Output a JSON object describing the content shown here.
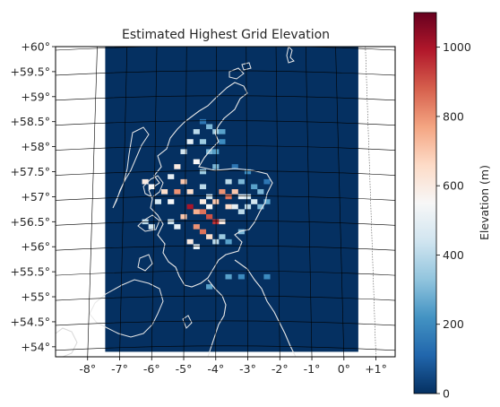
{
  "chart_data": {
    "type": "heatmap",
    "title": "Estimated Highest Grid Elevation",
    "xlabel": "",
    "ylabel": "",
    "xlim": [
      -9.0,
      1.6
    ],
    "ylim": [
      53.8,
      60.0
    ],
    "x_ticks": [
      {
        "value": -8,
        "label": "-8°"
      },
      {
        "value": -7,
        "label": "-7°"
      },
      {
        "value": -6,
        "label": "-6°"
      },
      {
        "value": -5,
        "label": "-5°"
      },
      {
        "value": -4,
        "label": "-4°"
      },
      {
        "value": -3,
        "label": "-3°"
      },
      {
        "value": -2,
        "label": "-2°"
      },
      {
        "value": -1,
        "label": "-1°"
      },
      {
        "value": 0,
        "label": "0°"
      },
      {
        "value": 1,
        "label": "+1°"
      }
    ],
    "y_ticks": [
      {
        "value": 60.0,
        "label": "+60°"
      },
      {
        "value": 59.5,
        "label": "+59.5°"
      },
      {
        "value": 59.0,
        "label": "+59°"
      },
      {
        "value": 58.5,
        "label": "+58.5°"
      },
      {
        "value": 58.0,
        "label": "+58°"
      },
      {
        "value": 57.5,
        "label": "+57.5°"
      },
      {
        "value": 57.0,
        "label": "+57°"
      },
      {
        "value": 56.5,
        "label": "+56.5°"
      },
      {
        "value": 56.0,
        "label": "+56°"
      },
      {
        "value": 55.5,
        "label": "+55.5°"
      },
      {
        "value": 55.0,
        "label": "+55°"
      },
      {
        "value": 54.5,
        "label": "+54.5°"
      },
      {
        "value": 54.0,
        "label": "+54°"
      }
    ],
    "colorbar": {
      "label": "Elevation (m)",
      "min": 0,
      "max": 1100,
      "ticks": [
        {
          "value": 0,
          "label": "0"
        },
        {
          "value": 200,
          "label": "200"
        },
        {
          "value": 400,
          "label": "400"
        },
        {
          "value": 600,
          "label": "600"
        },
        {
          "value": 800,
          "label": "800"
        },
        {
          "value": 1000,
          "label": "1000"
        }
      ],
      "colormap": "RdBu_r",
      "colors": [
        "#053061",
        "#2166ac",
        "#4393c3",
        "#92c5de",
        "#d1e5f0",
        "#f7f7f7",
        "#fddbc7",
        "#f4a582",
        "#d6604d",
        "#b2182b",
        "#67001f"
      ]
    },
    "data_extent": {
      "lon_min": -7.45,
      "lon_max": 0.45,
      "lat_min": 53.9,
      "lat_max": 60.0
    },
    "grid_cell_deg": {
      "lon": 0.2,
      "lat": 0.1
    },
    "cells": [
      {
        "lon": -4.4,
        "lat": 58.5,
        "elev": 150
      },
      {
        "lon": -4.2,
        "lat": 58.4,
        "elev": 300
      },
      {
        "lon": -4.0,
        "lat": 58.3,
        "elev": 350
      },
      {
        "lon": -3.8,
        "lat": 58.3,
        "elev": 250
      },
      {
        "lon": -4.6,
        "lat": 58.3,
        "elev": 400
      },
      {
        "lon": -4.8,
        "lat": 58.1,
        "elev": 500
      },
      {
        "lon": -5.0,
        "lat": 57.9,
        "elev": 450
      },
      {
        "lon": -4.4,
        "lat": 58.1,
        "elev": 350
      },
      {
        "lon": -4.2,
        "lat": 57.9,
        "elev": 300
      },
      {
        "lon": -3.8,
        "lat": 58.1,
        "elev": 200
      },
      {
        "lon": -4.0,
        "lat": 57.9,
        "elev": 250
      },
      {
        "lon": -4.6,
        "lat": 57.7,
        "elev": 550
      },
      {
        "lon": -5.2,
        "lat": 57.6,
        "elev": 600
      },
      {
        "lon": -5.4,
        "lat": 57.4,
        "elev": 500
      },
      {
        "lon": -5.0,
        "lat": 57.3,
        "elev": 700
      },
      {
        "lon": -4.8,
        "lat": 57.1,
        "elev": 650
      },
      {
        "lon": -5.2,
        "lat": 57.1,
        "elev": 800
      },
      {
        "lon": -5.4,
        "lat": 56.9,
        "elev": 550
      },
      {
        "lon": -4.4,
        "lat": 57.2,
        "elev": 400
      },
      {
        "lon": -4.2,
        "lat": 57.0,
        "elev": 450
      },
      {
        "lon": -3.8,
        "lat": 57.1,
        "elev": 800
      },
      {
        "lon": -3.6,
        "lat": 57.0,
        "elev": 850
      },
      {
        "lon": -3.4,
        "lat": 57.1,
        "elev": 700
      },
      {
        "lon": -3.2,
        "lat": 57.0,
        "elev": 500
      },
      {
        "lon": -3.0,
        "lat": 57.0,
        "elev": 450
      },
      {
        "lon": -3.6,
        "lat": 57.3,
        "elev": 400
      },
      {
        "lon": -3.2,
        "lat": 57.3,
        "elev": 300
      },
      {
        "lon": -2.8,
        "lat": 57.2,
        "elev": 250
      },
      {
        "lon": -2.6,
        "lat": 57.1,
        "elev": 300
      },
      {
        "lon": -2.4,
        "lat": 57.3,
        "elev": 150
      },
      {
        "lon": -3.0,
        "lat": 56.8,
        "elev": 400
      },
      {
        "lon": -2.8,
        "lat": 56.9,
        "elev": 450
      },
      {
        "lon": -4.8,
        "lat": 56.8,
        "elev": 1000
      },
      {
        "lon": -4.6,
        "lat": 56.7,
        "elev": 750
      },
      {
        "lon": -4.4,
        "lat": 56.7,
        "elev": 850
      },
      {
        "lon": -4.2,
        "lat": 56.6,
        "elev": 900
      },
      {
        "lon": -4.0,
        "lat": 56.5,
        "elev": 950
      },
      {
        "lon": -3.8,
        "lat": 56.5,
        "elev": 600
      },
      {
        "lon": -5.0,
        "lat": 56.6,
        "elev": 700
      },
      {
        "lon": -4.6,
        "lat": 56.4,
        "elev": 800
      },
      {
        "lon": -4.4,
        "lat": 56.3,
        "elev": 850
      },
      {
        "lon": -4.2,
        "lat": 56.2,
        "elev": 650
      },
      {
        "lon": -5.2,
        "lat": 56.4,
        "elev": 500
      },
      {
        "lon": -5.4,
        "lat": 56.5,
        "elev": 450
      },
      {
        "lon": -3.6,
        "lat": 56.8,
        "elev": 650
      },
      {
        "lon": -3.4,
        "lat": 56.8,
        "elev": 500
      },
      {
        "lon": -3.2,
        "lat": 56.7,
        "elev": 400
      },
      {
        "lon": -4.0,
        "lat": 56.9,
        "elev": 700
      },
      {
        "lon": -4.2,
        "lat": 56.8,
        "elev": 550
      },
      {
        "lon": -4.4,
        "lat": 56.9,
        "elev": 600
      },
      {
        "lon": -5.6,
        "lat": 57.1,
        "elev": 650
      },
      {
        "lon": -6.2,
        "lat": 57.3,
        "elev": 600
      },
      {
        "lon": -6.0,
        "lat": 57.2,
        "elev": 550
      },
      {
        "lon": -5.8,
        "lat": 56.9,
        "elev": 450
      },
      {
        "lon": -6.0,
        "lat": 56.4,
        "elev": 450
      },
      {
        "lon": -6.2,
        "lat": 56.5,
        "elev": 400
      },
      {
        "lon": -3.2,
        "lat": 56.3,
        "elev": 300
      },
      {
        "lon": -3.6,
        "lat": 56.1,
        "elev": 250
      },
      {
        "lon": -3.8,
        "lat": 56.2,
        "elev": 350
      },
      {
        "lon": -4.0,
        "lat": 56.1,
        "elev": 400
      },
      {
        "lon": -4.6,
        "lat": 56.0,
        "elev": 500
      },
      {
        "lon": -4.8,
        "lat": 56.1,
        "elev": 600
      },
      {
        "lon": -2.4,
        "lat": 56.9,
        "elev": 250
      },
      {
        "lon": -2.6,
        "lat": 56.8,
        "elev": 300
      },
      {
        "lon": -3.0,
        "lat": 57.5,
        "elev": 200
      },
      {
        "lon": -3.4,
        "lat": 57.6,
        "elev": 150
      },
      {
        "lon": -4.0,
        "lat": 57.6,
        "elev": 300
      },
      {
        "lon": -4.4,
        "lat": 57.5,
        "elev": 350
      },
      {
        "lon": -3.2,
        "lat": 55.4,
        "elev": 200
      },
      {
        "lon": -3.6,
        "lat": 55.4,
        "elev": 250
      },
      {
        "lon": -4.2,
        "lat": 55.2,
        "elev": 250
      },
      {
        "lon": -2.4,
        "lat": 55.4,
        "elev": 200
      }
    ]
  }
}
